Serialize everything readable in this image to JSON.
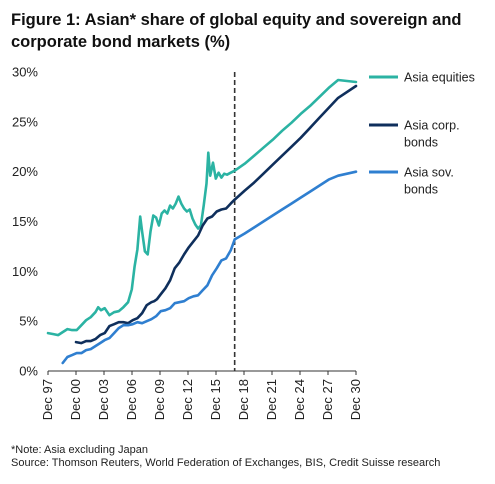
{
  "title": "Figure 1: Asian* share of global equity and sovereign and corporate bond markets (%)",
  "note": "*Note: Asia excluding Japan",
  "source": "Source: Thomson Reuters, World Federation of Exchanges, BIS, Credit Suisse research",
  "chart_data": {
    "type": "line",
    "title": "Figure 1: Asian* share of global equity and sovereign and corporate bond markets (%)",
    "xlabel": "",
    "ylabel": "",
    "ylim": [
      0,
      30
    ],
    "xlim": [
      1997.92,
      2030.92
    ],
    "yticks": [
      0,
      5,
      10,
      15,
      20,
      25,
      30
    ],
    "ytick_labels": [
      "0%",
      "5%",
      "10%",
      "15%",
      "20%",
      "25%",
      "30%"
    ],
    "xticks": [
      1997.92,
      2000.92,
      2003.92,
      2006.92,
      2009.92,
      2012.92,
      2015.92,
      2018.92,
      2021.92,
      2024.92,
      2027.92,
      2030.92
    ],
    "xtick_labels": [
      "Dec 97",
      "Dec 00",
      "Dec 03",
      "Dec 06",
      "Dec 09",
      "Dec 12",
      "Dec 15",
      "Dec 18",
      "Dec 21",
      "Dec 24",
      "Dec 27",
      "Dec 30"
    ],
    "vertical_line": {
      "x": 2017.92,
      "style": "dashed",
      "color": "#333333"
    },
    "legend_position": "right",
    "grid": false,
    "series": [
      {
        "name": "Asia equities",
        "color": "#2bb3a3",
        "x": [
          1997.92,
          1998.5,
          1999.0,
          1999.5,
          2000.0,
          2000.5,
          2001.0,
          2001.5,
          2002.0,
          2002.5,
          2003.0,
          2003.3,
          2003.6,
          2004.0,
          2004.5,
          2005.0,
          2005.5,
          2006.0,
          2006.5,
          2006.9,
          2007.2,
          2007.5,
          2007.8,
          2008.0,
          2008.3,
          2008.6,
          2008.9,
          2009.2,
          2009.5,
          2009.8,
          2010.1,
          2010.4,
          2010.7,
          2011.0,
          2011.3,
          2011.6,
          2011.9,
          2012.2,
          2012.5,
          2012.8,
          2013.1,
          2013.4,
          2013.7,
          2014.0,
          2014.3,
          2014.6,
          2014.9,
          2015.1,
          2015.3,
          2015.6,
          2015.9,
          2016.2,
          2016.5,
          2016.8,
          2017.1,
          2017.5,
          2017.92,
          2019,
          2020,
          2021,
          2022,
          2023,
          2024,
          2025,
          2026,
          2027,
          2028,
          2029,
          2030.92
        ],
        "values": [
          3.8,
          3.7,
          3.6,
          3.9,
          4.2,
          4.1,
          4.1,
          4.6,
          5.1,
          5.4,
          5.9,
          6.4,
          6.1,
          6.3,
          5.6,
          5.9,
          6.0,
          6.4,
          6.9,
          8.2,
          10.5,
          12.2,
          15.5,
          14.0,
          12.0,
          11.7,
          14.0,
          15.6,
          15.4,
          14.6,
          15.8,
          16.1,
          15.8,
          16.6,
          16.3,
          16.8,
          17.5,
          16.8,
          16.3,
          16.0,
          16.2,
          15.3,
          14.7,
          14.3,
          14.6,
          16.6,
          18.8,
          21.9,
          19.6,
          20.9,
          19.3,
          19.9,
          19.4,
          19.8,
          19.7,
          19.9,
          20.1,
          20.8,
          21.6,
          22.4,
          23.2,
          24.1,
          24.9,
          25.8,
          26.6,
          27.5,
          28.4,
          29.2,
          29.0
        ]
      },
      {
        "name": "Asia corp. bonds",
        "color": "#0f2f5c",
        "x": [
          2000.92,
          2001.5,
          2002.0,
          2002.5,
          2003.0,
          2003.5,
          2004.0,
          2004.5,
          2005.0,
          2005.5,
          2006.0,
          2006.5,
          2007.0,
          2007.5,
          2008.0,
          2008.5,
          2009.0,
          2009.3,
          2009.6,
          2010.0,
          2010.5,
          2011.0,
          2011.5,
          2012.0,
          2012.5,
          2013.0,
          2013.5,
          2014.0,
          2014.5,
          2015.0,
          2015.5,
          2016.0,
          2016.5,
          2017.0,
          2017.5,
          2017.92,
          2019,
          2020,
          2021,
          2022,
          2023,
          2024,
          2025,
          2026,
          2027,
          2028,
          2029,
          2030.92
        ],
        "values": [
          2.9,
          2.8,
          3.0,
          3.0,
          3.2,
          3.6,
          3.8,
          4.5,
          4.7,
          4.9,
          4.9,
          4.8,
          5.1,
          5.3,
          5.8,
          6.6,
          6.9,
          7.0,
          7.2,
          7.7,
          8.3,
          9.1,
          10.3,
          10.9,
          11.7,
          12.4,
          13.0,
          13.6,
          14.6,
          15.3,
          15.5,
          16.0,
          16.2,
          16.3,
          16.8,
          17.2,
          18.1,
          18.9,
          19.8,
          20.7,
          21.6,
          22.5,
          23.4,
          24.4,
          25.4,
          26.4,
          27.4,
          28.6
        ]
      },
      {
        "name": "Asia sov. bonds",
        "color": "#2f7fd0",
        "x": [
          1999.5,
          2000.0,
          2000.5,
          2001.0,
          2001.5,
          2002.0,
          2002.5,
          2003.0,
          2003.5,
          2004.0,
          2004.5,
          2005.0,
          2005.5,
          2006.0,
          2006.5,
          2007.0,
          2007.5,
          2008.0,
          2008.5,
          2009.0,
          2009.5,
          2010.0,
          2010.5,
          2011.0,
          2011.5,
          2012.0,
          2012.5,
          2013.0,
          2013.5,
          2014.0,
          2014.5,
          2015.0,
          2015.5,
          2016.0,
          2016.5,
          2017.0,
          2017.5,
          2017.92,
          2019,
          2020,
          2021,
          2022,
          2023,
          2024,
          2025,
          2026,
          2027,
          2028,
          2029,
          2030.92
        ],
        "values": [
          0.8,
          1.4,
          1.6,
          1.8,
          1.8,
          2.1,
          2.2,
          2.5,
          2.8,
          3.1,
          3.3,
          3.8,
          4.3,
          4.6,
          4.6,
          4.7,
          4.9,
          4.8,
          5.0,
          5.2,
          5.5,
          6.0,
          6.1,
          6.3,
          6.8,
          6.9,
          7.0,
          7.3,
          7.5,
          7.6,
          8.1,
          8.6,
          9.6,
          10.3,
          11.1,
          11.3,
          12.1,
          13.2,
          13.8,
          14.4,
          15.0,
          15.6,
          16.2,
          16.8,
          17.4,
          18.0,
          18.6,
          19.2,
          19.6,
          20.0
        ]
      }
    ]
  }
}
